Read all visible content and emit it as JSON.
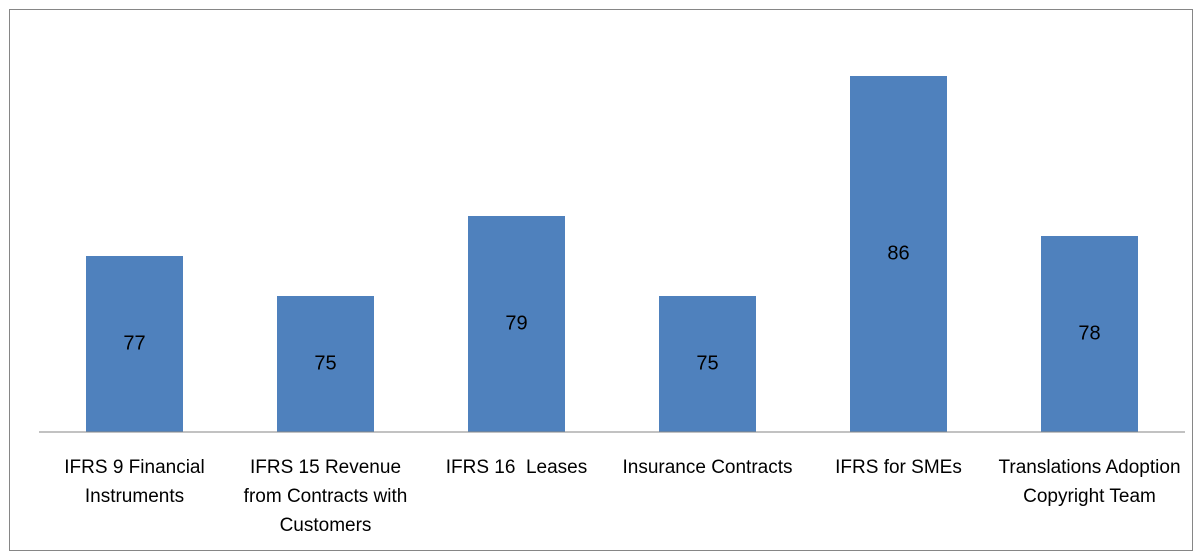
{
  "chart_data": {
    "type": "bar",
    "categories": [
      "IFRS 9 Financial Instruments",
      "IFRS 15 Revenue from Contracts with Customers",
      "IFRS 16  Leases",
      "Insurance Contracts",
      "IFRS for SMEs",
      "Translations Adoption Copyright Team"
    ],
    "values": [
      77,
      75,
      79,
      75,
      86,
      78
    ],
    "color": "#4f81bd",
    "ylim": [
      68.2,
      88
    ]
  }
}
